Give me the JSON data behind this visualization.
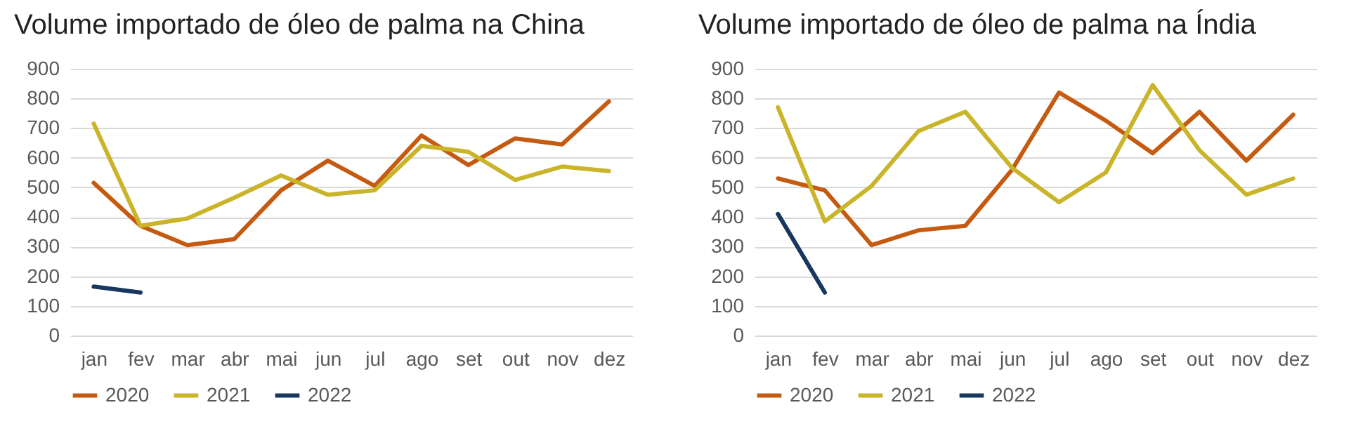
{
  "chart_data": [
    {
      "type": "line",
      "title": "Volume importado de óleo de palma na China",
      "categories": [
        "jan",
        "fev",
        "mar",
        "abr",
        "mai",
        "jun",
        "jul",
        "ago",
        "set",
        "out",
        "nov",
        "dez"
      ],
      "ylim": [
        0,
        900
      ],
      "yticks": [
        0,
        100,
        200,
        300,
        400,
        500,
        600,
        700,
        800,
        900
      ],
      "grid": "y",
      "legend": "bottom",
      "series": [
        {
          "name": "2020",
          "color": "#c55a11",
          "values": [
            515,
            370,
            305,
            325,
            490,
            590,
            505,
            675,
            575,
            665,
            645,
            790
          ]
        },
        {
          "name": "2021",
          "color": "#c9b42a",
          "values": [
            715,
            370,
            395,
            465,
            540,
            475,
            490,
            640,
            620,
            525,
            570,
            555
          ]
        },
        {
          "name": "2022",
          "color": "#17375e",
          "values": [
            165,
            145,
            null,
            null,
            null,
            null,
            null,
            null,
            null,
            null,
            null,
            null
          ]
        }
      ]
    },
    {
      "type": "line",
      "title": "Volume importado de óleo de palma na Índia",
      "categories": [
        "jan",
        "fev",
        "mar",
        "abr",
        "mai",
        "jun",
        "jul",
        "ago",
        "set",
        "out",
        "nov",
        "dez"
      ],
      "ylim": [
        0,
        900
      ],
      "yticks": [
        0,
        100,
        200,
        300,
        400,
        500,
        600,
        700,
        800,
        900
      ],
      "grid": "y",
      "legend": "bottom",
      "series": [
        {
          "name": "2020",
          "color": "#c55a11",
          "values": [
            530,
            490,
            305,
            355,
            370,
            560,
            820,
            725,
            615,
            755,
            590,
            745
          ]
        },
        {
          "name": "2021",
          "color": "#c9b42a",
          "values": [
            770,
            385,
            505,
            690,
            755,
            565,
            450,
            550,
            845,
            625,
            475,
            530
          ]
        },
        {
          "name": "2022",
          "color": "#17375e",
          "values": [
            410,
            145,
            null,
            null,
            null,
            null,
            null,
            null,
            null,
            null,
            null,
            null
          ]
        }
      ]
    }
  ]
}
